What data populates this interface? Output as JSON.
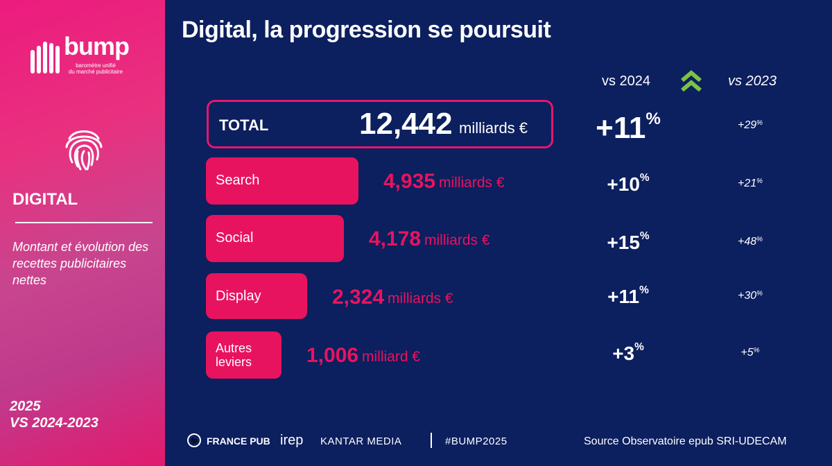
{
  "brand": {
    "name": "bump",
    "tagline_line1": "baromètre unifié",
    "tagline_line2": "du marché publicitaire"
  },
  "sidebar": {
    "section_title": "DIGITAL",
    "description": "Montant et évolution des recettes publicitaires nettes",
    "period_line1": "2025",
    "period_line2": "VS 2024-2023",
    "icon": "fingerprint-icon"
  },
  "title": "Digital, la progression se poursuit",
  "columns": {
    "vs_2024": "vs 2024",
    "vs_2023": "vs 2023",
    "trend_icon": "double-chevron-up-icon"
  },
  "total": {
    "label": "TOTAL",
    "value": "12,442",
    "unit": "milliards €",
    "vs_2024_value": "+11",
    "vs_2024_suffix": "%",
    "vs_2023_value": "+29",
    "vs_2023_suffix": "%"
  },
  "chart_data": {
    "type": "bar",
    "categories": [
      "Search",
      "Social",
      "Display",
      "Autres leviers"
    ],
    "values": [
      4.935,
      4.178,
      2.324,
      1.006
    ],
    "value_labels": [
      "4,935",
      "4,178",
      "2,324",
      "1,006"
    ],
    "units": [
      "milliards €",
      "milliards €",
      "milliards €",
      "milliard €"
    ],
    "vs_2024": [
      "+10",
      "+15",
      "+11",
      "+3"
    ],
    "vs_2023": [
      "+21",
      "+48",
      "+30",
      "+5"
    ],
    "percent_suffix": "%",
    "label_line1": [
      "Search",
      "Social",
      "Display",
      "Autres"
    ],
    "label_line2": [
      "",
      "",
      "",
      "leviers"
    ]
  },
  "colors": {
    "background": "#0c1f5e",
    "accent": "#e8135f",
    "trend_green": "#7cc242"
  },
  "footer": {
    "logo1": "FRANCE PUB",
    "logo1_mark": "fp",
    "logo2": "irep",
    "logo3": "KANTAR MEDIA",
    "hashtag": "#BUMP2025",
    "source": "Source Observatoire epub SRI-UDECAM"
  }
}
